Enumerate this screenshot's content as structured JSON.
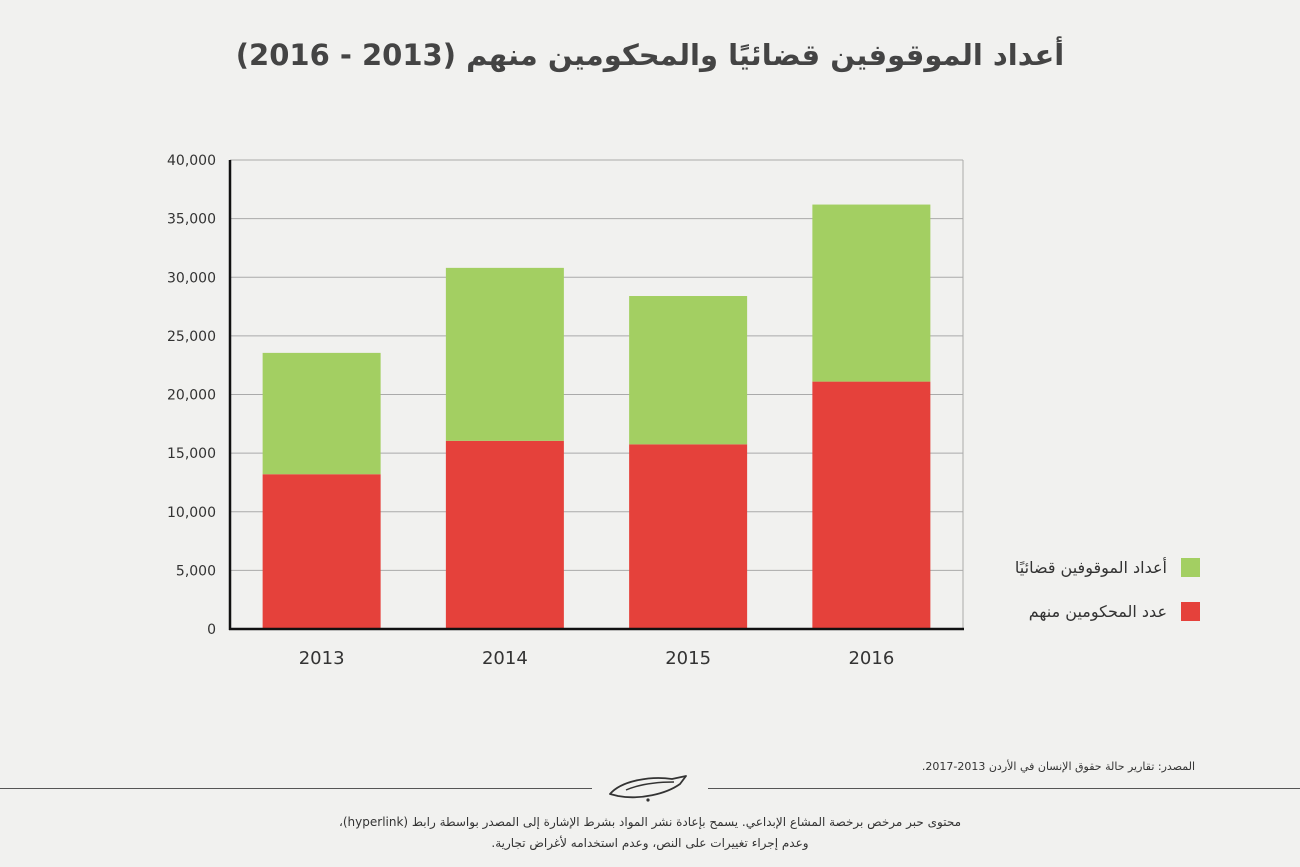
{
  "title": "أعداد الموقوفين قضائيًا والمحكومين منهم (2013 - 2016)",
  "chart_data": {
    "type": "bar",
    "stacked": true,
    "categories": [
      "2013",
      "2014",
      "2015",
      "2016"
    ],
    "series": [
      {
        "name": "عدد المحكومين منهم",
        "color": "#e5413b",
        "values": [
          13200,
          16050,
          15750,
          21100
        ]
      },
      {
        "name": "أعداد الموقوفين قضائيًا",
        "color": "#a3cf62",
        "values": [
          10350,
          14750,
          12650,
          15100
        ]
      }
    ],
    "totals": [
      23550,
      30800,
      28400,
      36200
    ],
    "ylim": [
      0,
      40000
    ],
    "yticks": [
      0,
      5000,
      10000,
      15000,
      20000,
      25000,
      30000,
      35000,
      40000
    ],
    "ytick_labels": [
      "0",
      "5,000",
      "10,000",
      "15,000",
      "20,000",
      "25,000",
      "30,000",
      "35,000",
      "40,000"
    ],
    "grid": true,
    "legend_position": "right",
    "xlabel": "",
    "ylabel": ""
  },
  "legend": {
    "detained_label": "أعداد الموقوفين قضائيًا",
    "sentenced_label": "عدد المحكومين منهم"
  },
  "source_text": "المصدر: تقارير حالة حقوق الإنسان في الأردن 2013-2017.",
  "license": {
    "line1": "محتوى حبر مرخص برخصة المشاع الإبداعي. يسمح بإعادة نشر المواد بشرط الإشارة إلى المصدر بواسطة رابط (hyperlink)،",
    "line2": "وعدم إجراء تغييرات على النص، وعدم استخدامه لأغراض تجارية."
  }
}
